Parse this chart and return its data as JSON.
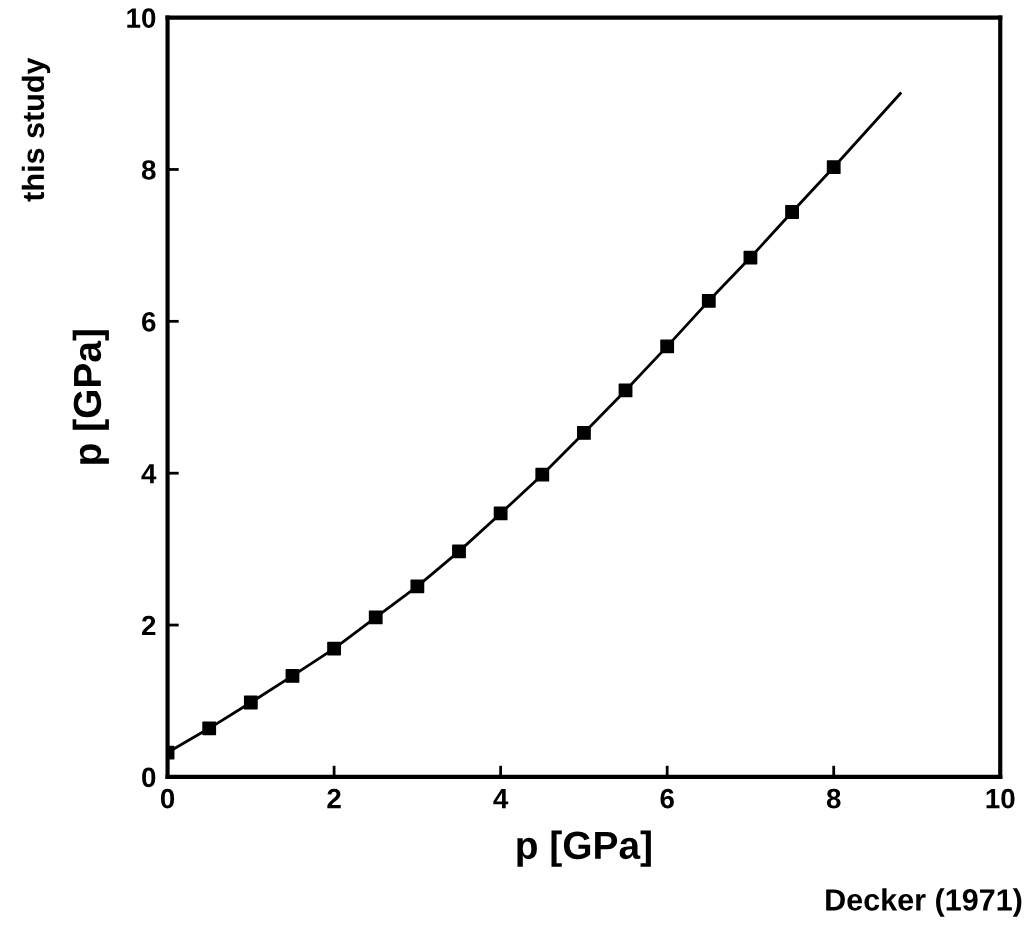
{
  "chart_data": {
    "type": "scatter",
    "xlabel": "p [GPa]",
    "ylabel": "p [GPa]",
    "annotations": [
      "this study",
      "Decker (1971)"
    ],
    "xlim": [
      0,
      10
    ],
    "ylim": [
      0,
      10
    ],
    "xticks": [
      0,
      2,
      4,
      6,
      8,
      10
    ],
    "yticks": [
      0,
      2,
      4,
      6,
      8,
      10
    ],
    "grid": false,
    "legend": false,
    "series": [
      {
        "type": "line",
        "color": "#000000",
        "marker": "none",
        "line_style": "solid",
        "x": [
          0,
          0.5,
          1,
          1.5,
          2,
          2.5,
          3,
          3.5,
          4,
          4.5,
          5,
          5.5,
          6,
          6.5,
          7,
          7.5,
          8,
          8.8
        ],
        "values": [
          0.32,
          0.64,
          0.98,
          1.33,
          1.69,
          2.1,
          2.51,
          2.97,
          3.47,
          3.98,
          4.53,
          5.09,
          5.67,
          6.27,
          6.84,
          7.44,
          8.03,
          9.0
        ]
      },
      {
        "color": "#000000",
        "marker": "square",
        "x": [
          0,
          0.5,
          1,
          1.5,
          2,
          2.5,
          3,
          3.5,
          4,
          4.5,
          5,
          5.5,
          6,
          6.5,
          7,
          7.5,
          8
        ],
        "values": [
          0.32,
          0.64,
          0.98,
          1.33,
          1.69,
          2.1,
          2.51,
          2.97,
          3.47,
          3.98,
          4.53,
          5.09,
          5.67,
          6.27,
          6.84,
          7.44,
          8.03
        ]
      }
    ]
  }
}
